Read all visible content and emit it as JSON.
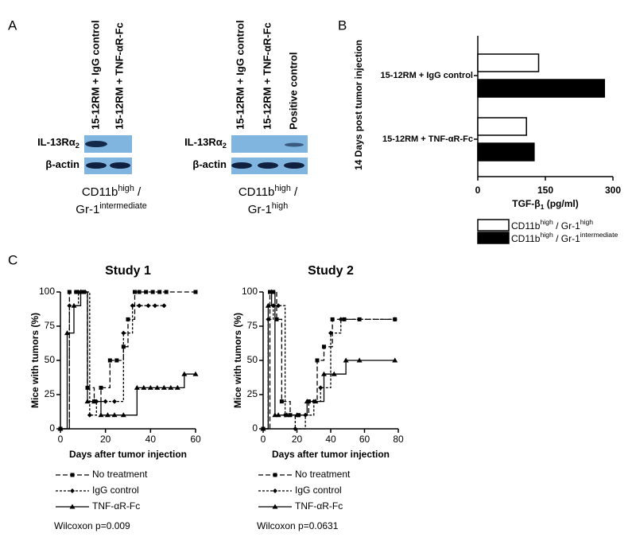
{
  "panel_labels": [
    "A",
    "B",
    "C"
  ],
  "blots": [
    {
      "lanes": [
        "15-12RM + IgG control",
        "15-12RM + TNF-αR-Fc"
      ],
      "rows": [
        [
          "IL-13Rα",
          "2"
        ],
        [
          "β-actin"
        ]
      ],
      "caption": [
        [
          "CD11b",
          "high",
          " /"
        ],
        [
          "Gr-1",
          "intermediate"
        ]
      ]
    },
    {
      "lanes": [
        "15-12RM + IgG control",
        "15-12RM + TNF-αR-Fc",
        "Positive control"
      ],
      "rows": [
        [
          "IL-13Rα",
          "2"
        ],
        [
          "β-actin"
        ]
      ],
      "caption": [
        [
          "CD11b",
          "high",
          " /"
        ],
        [
          "Gr-1",
          "high"
        ]
      ]
    }
  ],
  "chart_data": [
    {
      "type": "bar",
      "orientation": "horizontal",
      "ylabel": "14 Days post tumor injection",
      "xlabel": [
        "TGF-β",
        "1",
        " (pg/ml)"
      ],
      "categories": [
        "15-12RM + IgG control",
        "15-12RM + TNF-αR-Fc"
      ],
      "series": [
        {
          "name": [
            "CD11b",
            "high",
            " / Gr-1",
            "high"
          ],
          "color": "#ffffff",
          "values": [
            135,
            108
          ]
        },
        {
          "name": [
            "CD11b",
            "high",
            " / Gr-1",
            "intermediate"
          ],
          "color": "#000000",
          "values": [
            281,
            125
          ]
        }
      ],
      "xlim": [
        0,
        300
      ],
      "xticks": [
        0,
        150,
        300
      ]
    },
    {
      "type": "line",
      "title": "Study 1",
      "xlabel": "Days after tumor injection",
      "ylabel": "Mice with tumors  (%)",
      "series": [
        {
          "name": "No treatment",
          "color": "#000000",
          "dash": "6,3",
          "marker": "square",
          "x": [
            0,
            4,
            7,
            10,
            12,
            15,
            18,
            22,
            25,
            28,
            30,
            33,
            35,
            38,
            41,
            44,
            47,
            60
          ],
          "values": [
            0,
            100,
            100,
            100,
            30,
            20,
            30,
            50,
            50,
            60,
            80,
            100,
            100,
            100,
            100,
            100,
            100,
            100
          ]
        },
        {
          "name": "IgG control",
          "color": "#000000",
          "dash": "3,2",
          "marker": "diamond",
          "x": [
            0,
            4,
            8,
            11,
            13,
            16,
            20,
            24,
            28,
            32,
            35,
            39,
            42,
            46
          ],
          "values": [
            0,
            90,
            100,
            100,
            10,
            20,
            20,
            20,
            70,
            90,
            90,
            90,
            90,
            90
          ]
        },
        {
          "name": "TNF-αR-Fc",
          "color": "#000000",
          "dash": "none",
          "marker": "triangle",
          "x": [
            0,
            3,
            6,
            9,
            12,
            15,
            18,
            21,
            24,
            28,
            34,
            37,
            40,
            43,
            46,
            49,
            52,
            55,
            60
          ],
          "values": [
            0,
            70,
            90,
            100,
            20,
            20,
            10,
            10,
            10,
            10,
            30,
            30,
            30,
            30,
            30,
            30,
            30,
            40,
            40
          ]
        }
      ],
      "xlim": [
        0,
        60
      ],
      "xticks": [
        0,
        20,
        40,
        60
      ],
      "ylim": [
        0,
        100
      ],
      "yticks": [
        0,
        25,
        50,
        75,
        100
      ],
      "annotation": "Wilcoxon p=0.009"
    },
    {
      "type": "line",
      "title": "Study 2",
      "xlabel": "Days after tumor injection",
      "ylabel": "Mice with tumors  (%)",
      "series": [
        {
          "name": "No treatment",
          "color": "#000000",
          "dash": "6,3",
          "marker": "square",
          "x": [
            0,
            4,
            6,
            8,
            11,
            16,
            21,
            27,
            32,
            36,
            41,
            48,
            57,
            78
          ],
          "values": [
            0,
            100,
            100,
            80,
            20,
            10,
            10,
            20,
            50,
            60,
            80,
            80,
            80,
            80
          ]
        },
        {
          "name": "IgG control",
          "color": "#000000",
          "dash": "3,2",
          "marker": "diamond",
          "x": [
            0,
            3,
            6,
            9,
            13,
            19,
            25,
            30,
            34,
            40,
            46,
            78
          ],
          "values": [
            0,
            80,
            90,
            90,
            10,
            0,
            10,
            20,
            30,
            70,
            80,
            80
          ]
        },
        {
          "name": "TNF-αR-Fc",
          "color": "#000000",
          "dash": "none",
          "marker": "triangle",
          "x": [
            0,
            3,
            5,
            7,
            9,
            14,
            20,
            26,
            31,
            36,
            42,
            49,
            57,
            78
          ],
          "values": [
            0,
            90,
            100,
            10,
            10,
            10,
            10,
            20,
            20,
            40,
            40,
            50,
            50,
            50
          ]
        }
      ],
      "xlim": [
        0,
        80
      ],
      "xticks": [
        0,
        20,
        40,
        60,
        80
      ],
      "ylim": [
        0,
        100
      ],
      "yticks": [
        0,
        25,
        50,
        75,
        100
      ],
      "annotation": "Wilcoxon p=0.0631"
    }
  ]
}
